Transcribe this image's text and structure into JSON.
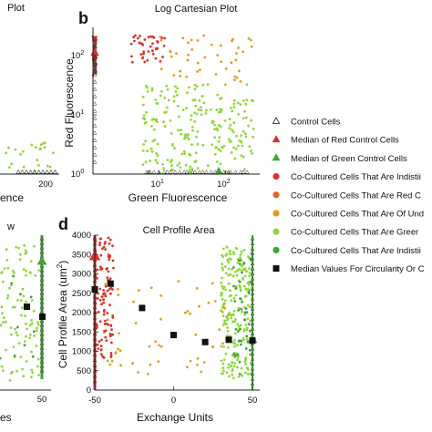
{
  "chart_data": [
    {
      "panel": "a",
      "type": "scatter",
      "title": "Plot",
      "xlabel": "ence",
      "xticks": [
        "200"
      ],
      "note": "cropped panel"
    },
    {
      "panel": "b",
      "type": "scatter",
      "title": "Log Cartesian Plot",
      "xlabel": "Green Fluorescence",
      "ylabel": "Red Fluorescence",
      "xscale": "log",
      "yscale": "log",
      "xlim": [
        1,
        300
      ],
      "ylim": [
        1,
        300
      ],
      "xticks": [
        {
          "label": "10",
          "sup": "1",
          "value": 10
        },
        {
          "label": "10",
          "sup": "2",
          "value": 100
        }
      ],
      "yticks": [
        {
          "label": "10",
          "sup": "0",
          "value": 1
        },
        {
          "label": "10",
          "sup": "1",
          "value": 10
        },
        {
          "label": "10",
          "sup": "2",
          "value": 100
        }
      ],
      "series": [
        {
          "name": "Control Cells",
          "marker": "open-triangle",
          "color": "#444444"
        },
        {
          "name": "Co-Cultured Cells That Are Red C",
          "color": "#d9342b"
        },
        {
          "name": "Co-Cultured Cells That Are Of Un",
          "color": "#e59b1f"
        },
        {
          "name": "Co-Cultured Cells That Are Greer",
          "color": "#7fd130"
        }
      ]
    },
    {
      "panel": "c",
      "type": "scatter",
      "title": "w",
      "xticks": [
        "50"
      ],
      "xlabel": "es"
    },
    {
      "panel": "d",
      "type": "scatter",
      "title": "Cell Profile Area",
      "xlabel": "Exchange Units",
      "ylabel": "Cell Profile Area (um",
      "ylabel_sup": "2",
      "xlim": [
        -50,
        50
      ],
      "ylim": [
        0,
        4000
      ],
      "xticks": [
        {
          "label": "-50",
          "value": -50
        },
        {
          "label": "0",
          "value": 0
        },
        {
          "label": "50",
          "value": 50
        }
      ],
      "yticks": [
        {
          "label": "0",
          "value": 0
        },
        {
          "label": "500",
          "value": 500
        },
        {
          "label": "1000",
          "value": 1000
        },
        {
          "label": "1500",
          "value": 1500
        },
        {
          "label": "2000",
          "value": 2000
        },
        {
          "label": "2500",
          "value": 2500
        },
        {
          "label": "3000",
          "value": 3000
        },
        {
          "label": "3500",
          "value": 3500
        },
        {
          "label": "4000",
          "value": 4000
        }
      ],
      "median_squares": [
        {
          "x": -50,
          "y": 2600
        },
        {
          "x": -40,
          "y": 2750
        },
        {
          "x": -20,
          "y": 2120
        },
        {
          "x": 0,
          "y": 1420
        },
        {
          "x": 20,
          "y": 1240
        },
        {
          "x": 35,
          "y": 1300
        },
        {
          "x": 50,
          "y": 1280
        }
      ],
      "median_red_control": {
        "x": -50,
        "y": 3450
      },
      "median_green_control": {
        "x": 50,
        "y": 1300
      }
    }
  ],
  "panel_letters": {
    "b": "b",
    "d": "d"
  },
  "legend": {
    "items": [
      {
        "label": "Control Cells",
        "marker": "open-triangle",
        "color": "#333333"
      },
      {
        "label": "Median of Red Control Cells",
        "marker": "triangle",
        "color": "#d9342b"
      },
      {
        "label": "Median of Green Control Cells",
        "marker": "triangle",
        "color": "#3fa535"
      },
      {
        "label": "Co-Cultured Cells That Are Indistii",
        "marker": "circle",
        "color": "#d9342b"
      },
      {
        "label": "Co-Cultured Cells That Are Red C",
        "marker": "circle",
        "color": "#e8603a"
      },
      {
        "label": "Co-Cultured Cells That Are Of Und",
        "marker": "circle",
        "color": "#e59b1f"
      },
      {
        "label": "Co-Cultured Cells That Are Greer",
        "marker": "circle",
        "color": "#8fd83a"
      },
      {
        "label": "Co-Cultured Cells That Are Indistii",
        "marker": "circle",
        "color": "#3fa535"
      },
      {
        "label": "Median Values For Circularity Or C",
        "marker": "square",
        "color": "#111111"
      }
    ]
  },
  "colors": {
    "red": "#d9342b",
    "orange": "#e59b1f",
    "lightgreen": "#8fd83a",
    "green": "#3fa535",
    "control": "#333333",
    "axis": "#222222"
  }
}
